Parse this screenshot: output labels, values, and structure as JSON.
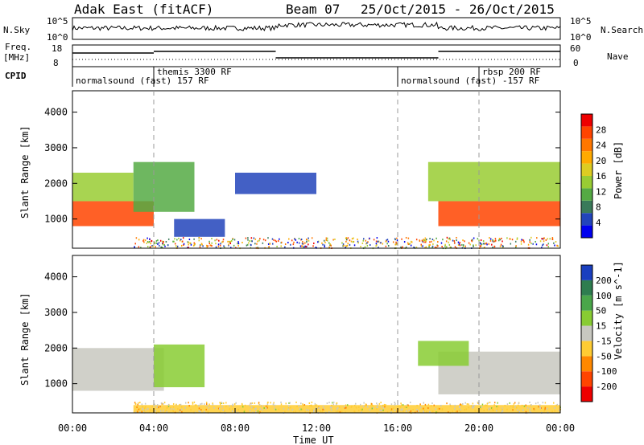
{
  "header": {
    "title": "Adak East (fitACF)",
    "beam": "Beam 07",
    "date_range": "25/Oct/2015 - 26/Oct/2015"
  },
  "left_labels": {
    "nsky": "N.Sky",
    "nsky_ticks": [
      "10^5",
      "10^0"
    ],
    "freq_1": "Freq.",
    "freq_2": "[MHz]",
    "freq_ticks": [
      "18",
      "8"
    ],
    "cpid": "CPID"
  },
  "right_labels": {
    "nsearch": "N.Search",
    "nsearch_ticks": [
      "10^5",
      "10^0"
    ],
    "nave": "Nave",
    "nave_ticks": [
      "60",
      "0"
    ]
  },
  "cpid_modes": [
    {
      "label": "normalsound (fast) 157 RF",
      "start_hour": 0,
      "end_hour": 4
    },
    {
      "label": "themis 3300 RF",
      "start_hour": 4,
      "end_hour": 16
    },
    {
      "label": "normalsound (fast) -157 RF",
      "start_hour": 16,
      "end_hour": 20
    },
    {
      "label": "rbsp 200 RF",
      "start_hour": 20,
      "end_hour": 24
    }
  ],
  "x_axis": {
    "label": "Time UT",
    "ticks": [
      "00:00",
      "04:00",
      "08:00",
      "12:00",
      "16:00",
      "20:00",
      "00:00"
    ]
  },
  "power_panel": {
    "ylabel": "Slant Range [km]",
    "yticks": [
      "1000",
      "2000",
      "3000",
      "4000"
    ],
    "colorbar_label": "Power [dB]",
    "colorbar_ticks": [
      "4",
      "8",
      "12",
      "16",
      "20",
      "24",
      "28"
    ],
    "colors": [
      "#0000ee",
      "#2244bb",
      "#3a7a5a",
      "#55aa44",
      "#99cc33",
      "#ddcc22",
      "#ffaa00",
      "#ff7700",
      "#ff4400",
      "#ee0000"
    ]
  },
  "velocity_panel": {
    "ylabel": "Slant Range [km]",
    "yticks": [
      "1000",
      "2000",
      "3000",
      "4000"
    ],
    "colorbar_label": "Velocity [m s^-1]",
    "colorbar_ticks": [
      "200",
      "100",
      "50",
      "15",
      "-15",
      "-50",
      "-100",
      "-200"
    ],
    "colors": [
      "#1a3fbf",
      "#2e7d4f",
      "#4aa64a",
      "#88cc33",
      "#c8c8c0",
      "#ffcc33",
      "#ff8800",
      "#ff4400",
      "#ee0000"
    ]
  },
  "chart_data": {
    "type": "heatmap",
    "title": "Adak East (fitACF)",
    "x_range_hours": [
      0,
      24
    ],
    "y_range_km": [
      180,
      4600
    ],
    "power_bands": [
      {
        "t0": 0.0,
        "t1": 4.0,
        "r_low": 800,
        "r_high": 1500,
        "db": 26
      },
      {
        "t0": 0.0,
        "t1": 3.0,
        "r_low": 1500,
        "r_high": 2300,
        "db": 14
      },
      {
        "t0": 3.0,
        "t1": 6.0,
        "r_low": 1200,
        "r_high": 2600,
        "db": 10
      },
      {
        "t0": 5.0,
        "t1": 7.5,
        "r_low": 500,
        "r_high": 1000,
        "db": 5
      },
      {
        "t0": 8.0,
        "t1": 12.0,
        "r_low": 1700,
        "r_high": 2300,
        "db": 4
      },
      {
        "t0": 18.0,
        "t1": 24.0,
        "r_low": 800,
        "r_high": 1500,
        "db": 26
      },
      {
        "t0": 17.5,
        "t1": 24.0,
        "r_low": 1500,
        "r_high": 2600,
        "db": 13
      }
    ],
    "velocity_bands": [
      {
        "t0": 0.0,
        "t1": 4.5,
        "r_low": 800,
        "r_high": 2000,
        "v": 0
      },
      {
        "t0": 4.0,
        "t1": 6.5,
        "r_low": 900,
        "r_high": 2100,
        "v": 40
      },
      {
        "t0": 18.0,
        "t1": 24.0,
        "r_low": 700,
        "r_high": 1900,
        "v": 0
      },
      {
        "t0": 17.0,
        "t1": 19.5,
        "r_low": 1500,
        "r_high": 2200,
        "v": 30
      },
      {
        "t0": 3.0,
        "t1": 24.0,
        "r_low": 180,
        "r_high": 400,
        "v": -20
      }
    ]
  }
}
